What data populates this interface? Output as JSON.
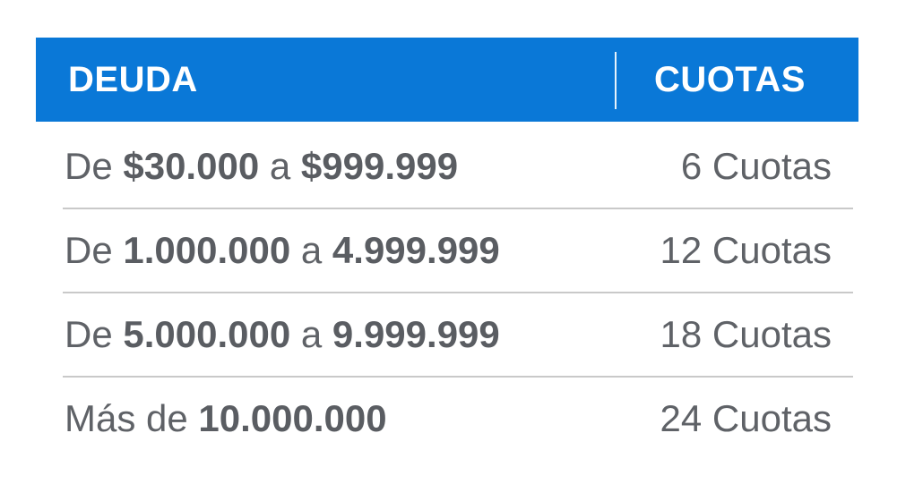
{
  "header": {
    "debt_label": "DEUDA",
    "fees_label": "CUOTAS"
  },
  "rows": [
    {
      "prefix": "De ",
      "from": "$30.000",
      "joiner": " a ",
      "to": "$999.999",
      "fees": "6 Cuotas"
    },
    {
      "prefix": "De ",
      "from": "1.000.000",
      "joiner": " a ",
      "to": "4.999.999",
      "fees": "12 Cuotas"
    },
    {
      "prefix": "De ",
      "from": "5.000.000",
      "joiner": " a ",
      "to": "9.999.999",
      "fees": "18 Cuotas"
    },
    {
      "prefix": "Más de ",
      "from": "10.000.000",
      "fees": "24 Cuotas"
    }
  ],
  "colors": {
    "header_bg": "#0a78d7",
    "header_text": "#ffffff",
    "body_text": "#5f6267",
    "row_divider": "#c9c9c9"
  }
}
